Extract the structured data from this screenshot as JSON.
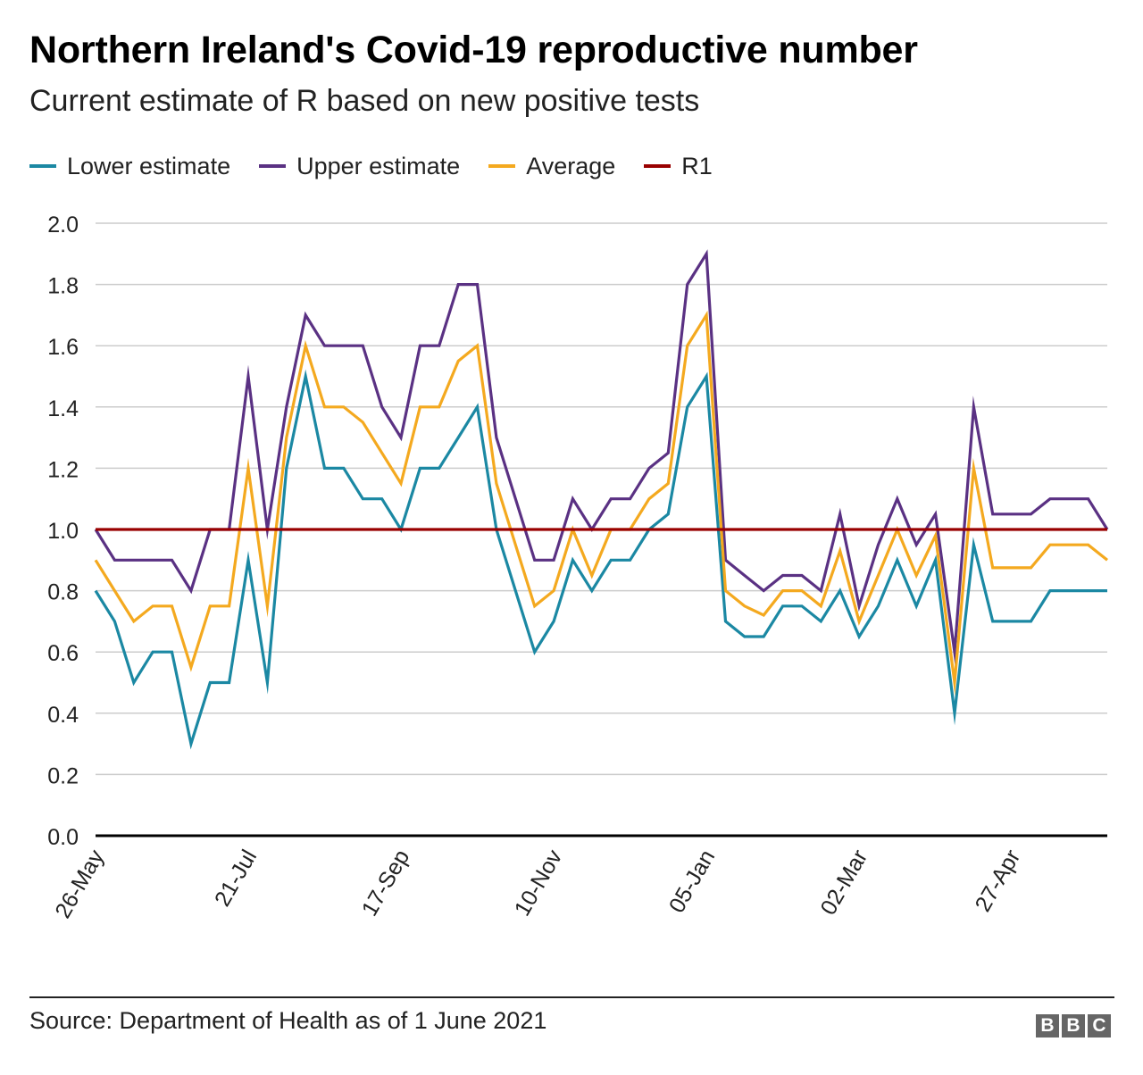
{
  "header": {
    "title": "Northern Ireland's Covid-19 reproductive number",
    "subtitle": "Current estimate of R based on new positive tests"
  },
  "legend": [
    {
      "label": "Lower estimate",
      "color": "#1b88a3"
    },
    {
      "label": "Upper estimate",
      "color": "#5a3183"
    },
    {
      "label": "Average",
      "color": "#f4a91f"
    },
    {
      "label": "R1",
      "color": "#990000"
    }
  ],
  "footer": {
    "source": "Source: Department of Health as of 1 June 2021",
    "logo_letters": [
      "B",
      "B",
      "C"
    ]
  },
  "chart_data": {
    "type": "line",
    "title": "Northern Ireland's Covid-19 reproductive number",
    "subtitle": "Current estimate of R based on new positive tests",
    "xlabel": "",
    "ylabel": "",
    "x_tick_labels": [
      {
        "label": "26-May",
        "index": 0
      },
      {
        "label": "21-Jul",
        "index": 8
      },
      {
        "label": "17-Sep",
        "index": 16
      },
      {
        "label": "10-Nov",
        "index": 24
      },
      {
        "label": "05-Jan",
        "index": 32
      },
      {
        "label": "02-Mar",
        "index": 40
      },
      {
        "label": "27-Apr",
        "index": 48
      }
    ],
    "ylim": [
      0,
      2.0
    ],
    "yticks": [
      "0.0",
      "0.2",
      "0.4",
      "0.6",
      "0.8",
      "1.0",
      "1.2",
      "1.4",
      "1.6",
      "1.8",
      "2.0"
    ],
    "grid": "horizontal",
    "legend_position": "top-left",
    "series": [
      {
        "name": "Lower estimate",
        "color": "#1b88a3",
        "values": [
          0.8,
          0.7,
          0.5,
          0.6,
          0.6,
          0.3,
          0.5,
          0.5,
          0.9,
          0.5,
          1.2,
          1.5,
          1.2,
          1.2,
          1.1,
          1.1,
          1.0,
          1.2,
          1.2,
          1.3,
          1.4,
          1.0,
          0.8,
          0.6,
          0.7,
          0.9,
          0.8,
          0.9,
          0.9,
          1.0,
          1.05,
          1.4,
          1.5,
          0.7,
          0.65,
          0.65,
          0.75,
          0.75,
          0.7,
          0.8,
          0.65,
          0.75,
          0.9,
          0.75,
          0.9,
          0.4,
          0.95,
          0.7,
          0.7,
          0.7,
          0.8,
          0.8,
          0.8,
          0.8
        ]
      },
      {
        "name": "Upper estimate",
        "color": "#5a3183",
        "values": [
          1.0,
          0.9,
          0.9,
          0.9,
          0.9,
          0.8,
          1.0,
          1.0,
          1.5,
          1.0,
          1.4,
          1.7,
          1.6,
          1.6,
          1.6,
          1.4,
          1.3,
          1.6,
          1.6,
          1.8,
          1.8,
          1.3,
          1.1,
          0.9,
          0.9,
          1.1,
          1.0,
          1.1,
          1.1,
          1.2,
          1.25,
          1.8,
          1.9,
          0.9,
          0.85,
          0.8,
          0.85,
          0.85,
          0.8,
          1.05,
          0.75,
          0.95,
          1.1,
          0.95,
          1.05,
          0.6,
          1.4,
          1.05,
          1.05,
          1.05,
          1.1,
          1.1,
          1.1,
          1.0
        ]
      },
      {
        "name": "Average",
        "color": "#f4a91f",
        "values": [
          0.9,
          0.8,
          0.7,
          0.75,
          0.75,
          0.55,
          0.75,
          0.75,
          1.2,
          0.75,
          1.3,
          1.6,
          1.4,
          1.4,
          1.35,
          1.25,
          1.15,
          1.4,
          1.4,
          1.55,
          1.6,
          1.15,
          0.95,
          0.75,
          0.8,
          1.0,
          0.85,
          1.0,
          1.0,
          1.1,
          1.15,
          1.6,
          1.7,
          0.8,
          0.75,
          0.72,
          0.8,
          0.8,
          0.75,
          0.93,
          0.7,
          0.85,
          1.0,
          0.85,
          0.98,
          0.5,
          1.2,
          0.875,
          0.875,
          0.875,
          0.95,
          0.95,
          0.95,
          0.9
        ]
      },
      {
        "name": "R1",
        "color": "#990000",
        "values": [
          1.0,
          1.0,
          1.0,
          1.0,
          1.0,
          1.0,
          1.0,
          1.0,
          1.0,
          1.0,
          1.0,
          1.0,
          1.0,
          1.0,
          1.0,
          1.0,
          1.0,
          1.0,
          1.0,
          1.0,
          1.0,
          1.0,
          1.0,
          1.0,
          1.0,
          1.0,
          1.0,
          1.0,
          1.0,
          1.0,
          1.0,
          1.0,
          1.0,
          1.0,
          1.0,
          1.0,
          1.0,
          1.0,
          1.0,
          1.0,
          1.0,
          1.0,
          1.0,
          1.0,
          1.0,
          1.0,
          1.0,
          1.0,
          1.0,
          1.0,
          1.0,
          1.0,
          1.0,
          1.0
        ]
      }
    ]
  }
}
